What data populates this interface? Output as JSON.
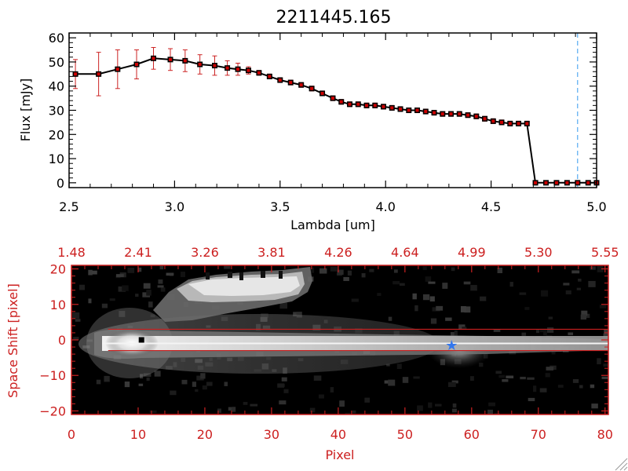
{
  "title": "2211445.165",
  "colors": {
    "axis": "#000000",
    "marker": "#cc0000",
    "errorbar": "#cc2222",
    "red_axis": "#cc2020",
    "vline": "#3399ee",
    "star": "#3377ee",
    "image_bg": "#000000"
  },
  "chart_data": [
    {
      "type": "line",
      "title": "2211445.165",
      "xlabel": "Lambda [um]",
      "ylabel": "Flux [mJy]",
      "xlim": [
        2.5,
        5.0
      ],
      "ylim": [
        -2,
        62
      ],
      "xticks": [
        2.5,
        3.0,
        3.5,
        4.0,
        4.5,
        5.0
      ],
      "xtick_labels": [
        "2.5",
        "3.0",
        "3.5",
        "4.0",
        "4.5",
        "5.0"
      ],
      "yticks": [
        0,
        10,
        20,
        30,
        40,
        50,
        60
      ],
      "ytick_labels": [
        "0",
        "10",
        "20",
        "30",
        "40",
        "50",
        "60"
      ],
      "vline_x": 4.91,
      "series": [
        {
          "name": "Flux",
          "x": [
            2.53,
            2.64,
            2.73,
            2.82,
            2.9,
            2.98,
            3.05,
            3.12,
            3.19,
            3.25,
            3.3,
            3.35,
            3.4,
            3.45,
            3.5,
            3.55,
            3.6,
            3.65,
            3.7,
            3.75,
            3.79,
            3.83,
            3.87,
            3.91,
            3.95,
            3.99,
            4.03,
            4.07,
            4.11,
            4.15,
            4.19,
            4.23,
            4.27,
            4.31,
            4.35,
            4.39,
            4.43,
            4.47,
            4.51,
            4.55,
            4.59,
            4.63,
            4.67,
            4.71,
            4.76,
            4.81,
            4.86,
            4.91,
            4.96,
            5.0
          ],
          "y": [
            45,
            45,
            47,
            49,
            51.5,
            51,
            50.5,
            49,
            48.5,
            47.5,
            47,
            46.5,
            45.5,
            44,
            42.5,
            41.5,
            40.5,
            39,
            37,
            35,
            33.5,
            32.5,
            32.5,
            32,
            32,
            31.5,
            31,
            30.5,
            30,
            30,
            29.5,
            29,
            28.5,
            28.5,
            28.5,
            28,
            27.5,
            26.5,
            25.5,
            25,
            24.5,
            24.5,
            24.5,
            0,
            0,
            0,
            0,
            0,
            0,
            0
          ],
          "yerr": [
            6,
            9,
            8,
            6,
            4.5,
            4.5,
            4.5,
            4,
            4,
            3,
            2.5,
            1.5,
            1,
            1,
            1,
            1,
            1,
            1,
            1,
            1,
            1,
            1,
            1,
            1,
            1,
            1,
            1,
            1,
            1,
            1,
            1,
            1,
            1,
            1,
            1,
            1,
            1,
            1,
            1,
            1,
            1,
            1,
            1,
            0,
            0,
            0,
            0,
            0,
            0,
            0
          ]
        }
      ]
    },
    {
      "type": "heatmap",
      "xlabel": "Pixel",
      "ylabel": "Space Shift [pixel]",
      "xlim": [
        0,
        80.5
      ],
      "ylim": [
        -21,
        21
      ],
      "xticks": [
        0,
        10,
        20,
        30,
        40,
        50,
        60,
        70,
        80
      ],
      "xtick_labels": [
        "0",
        "10",
        "20",
        "30",
        "40",
        "50",
        "60",
        "70",
        "80"
      ],
      "yticks": [
        -20,
        -10,
        0,
        10,
        20
      ],
      "ytick_labels": [
        "−20",
        "−10",
        "0",
        "10",
        "20"
      ],
      "top_axis_label_positions": [
        0,
        10,
        20,
        30,
        40,
        50,
        60,
        70,
        80
      ],
      "top_axis_labels": [
        "1.48",
        "2.41",
        "3.26",
        "3.81",
        "4.26",
        "4.64",
        "4.99",
        "5.30",
        "5.55"
      ],
      "aperture_lines_y": [
        3,
        -3
      ],
      "trace_start_x": 5.5,
      "source_marker": {
        "x": 10.5,
        "y": 0
      },
      "star_marker": {
        "x": 57,
        "y": -1.5
      }
    }
  ]
}
